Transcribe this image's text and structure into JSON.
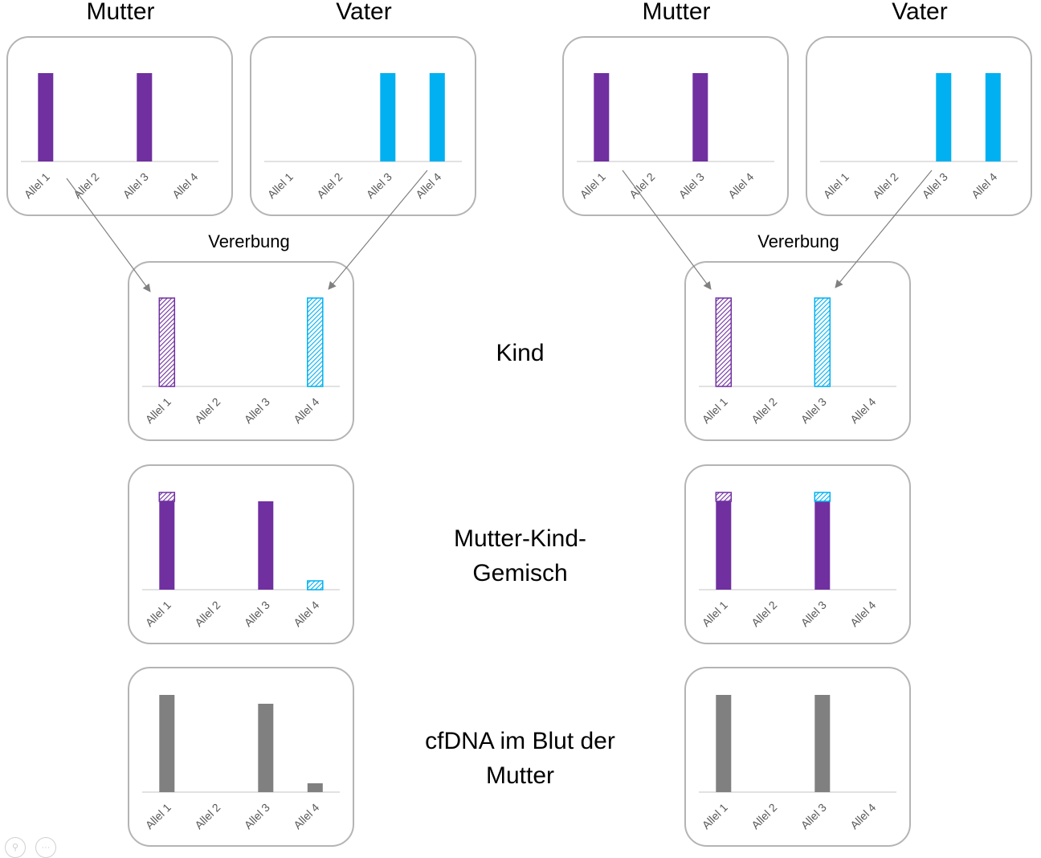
{
  "headings": {
    "left_mother": "Mutter",
    "left_father": "Vater",
    "right_mother": "Mutter",
    "right_father": "Vater"
  },
  "inheritance_label": "Vererbung",
  "row_labels": {
    "child": "Kind",
    "mix": "Mutter-Kind-Gemisch",
    "cfdna": "cfDNA im Blut der Mutter"
  },
  "colors": {
    "mother": "#7030a0",
    "father": "#00b0f0",
    "cfdna": "#808080",
    "axis": "#d9d9d9",
    "panel_border": "#b4b4b4",
    "arrow": "#808080"
  },
  "chart_data": [
    {
      "id": "L-mother",
      "type": "bar",
      "categories": [
        "Allel 1",
        "Allel 2",
        "Allel 3",
        "Allel 4"
      ],
      "series": [
        {
          "values": [
            1,
            0,
            1,
            0
          ],
          "color": "mother",
          "style": "solid"
        }
      ],
      "ylim": [
        0,
        1
      ]
    },
    {
      "id": "L-father",
      "type": "bar",
      "categories": [
        "Allel 1",
        "Allel 2",
        "Allel 3",
        "Allel 4"
      ],
      "series": [
        {
          "values": [
            0,
            0,
            1,
            1
          ],
          "color": "father",
          "style": "solid"
        }
      ],
      "ylim": [
        0,
        1
      ]
    },
    {
      "id": "R-mother",
      "type": "bar",
      "categories": [
        "Allel 1",
        "Allel 2",
        "Allel 3",
        "Allel 4"
      ],
      "series": [
        {
          "values": [
            1,
            0,
            1,
            0
          ],
          "color": "mother",
          "style": "solid"
        }
      ],
      "ylim": [
        0,
        1
      ]
    },
    {
      "id": "R-father",
      "type": "bar",
      "categories": [
        "Allel 1",
        "Allel 2",
        "Allel 3",
        "Allel 4"
      ],
      "series": [
        {
          "values": [
            0,
            0,
            1,
            1
          ],
          "color": "father",
          "style": "solid"
        }
      ],
      "ylim": [
        0,
        1
      ]
    },
    {
      "id": "L-child",
      "type": "bar",
      "categories": [
        "Allel 1",
        "Allel 2",
        "Allel 3",
        "Allel 4"
      ],
      "series": [
        {
          "values": [
            1,
            0,
            0,
            0
          ],
          "color": "mother",
          "style": "hatched"
        },
        {
          "values": [
            0,
            0,
            0,
            1
          ],
          "color": "father",
          "style": "hatched"
        }
      ],
      "ylim": [
        0,
        1
      ]
    },
    {
      "id": "R-child",
      "type": "bar",
      "categories": [
        "Allel 1",
        "Allel 2",
        "Allel 3",
        "Allel 4"
      ],
      "series": [
        {
          "values": [
            1,
            0,
            0,
            0
          ],
          "color": "mother",
          "style": "hatched"
        },
        {
          "values": [
            0,
            0,
            1,
            0
          ],
          "color": "father",
          "style": "hatched"
        }
      ],
      "ylim": [
        0,
        1
      ]
    },
    {
      "id": "L-mix",
      "type": "bar",
      "stacked": true,
      "categories": [
        "Allel 1",
        "Allel 2",
        "Allel 3",
        "Allel 4"
      ],
      "series": [
        {
          "values": [
            1,
            0,
            1,
            0
          ],
          "color": "mother",
          "style": "solid"
        },
        {
          "values": [
            0.1,
            0,
            0,
            0
          ],
          "color": "mother",
          "style": "hatched"
        },
        {
          "values": [
            0,
            0,
            0,
            0.1
          ],
          "color": "father",
          "style": "hatched"
        }
      ],
      "ylim": [
        0,
        1.1
      ]
    },
    {
      "id": "R-mix",
      "type": "bar",
      "stacked": true,
      "categories": [
        "Allel 1",
        "Allel 2",
        "Allel 3",
        "Allel 4"
      ],
      "series": [
        {
          "values": [
            1,
            0,
            1,
            0
          ],
          "color": "mother",
          "style": "solid"
        },
        {
          "values": [
            0.1,
            0,
            0,
            0
          ],
          "color": "mother",
          "style": "hatched"
        },
        {
          "values": [
            0,
            0,
            0.1,
            0
          ],
          "color": "father",
          "style": "hatched"
        }
      ],
      "ylim": [
        0,
        1.1
      ]
    },
    {
      "id": "L-cfdna",
      "type": "bar",
      "categories": [
        "Allel 1",
        "Allel 2",
        "Allel 3",
        "Allel 4"
      ],
      "series": [
        {
          "values": [
            1.1,
            0,
            1,
            0.1
          ],
          "color": "cfdna",
          "style": "solid"
        }
      ],
      "ylim": [
        0,
        1.1
      ]
    },
    {
      "id": "R-cfdna",
      "type": "bar",
      "categories": [
        "Allel 1",
        "Allel 2",
        "Allel 3",
        "Allel 4"
      ],
      "series": [
        {
          "values": [
            1.1,
            0,
            1.1,
            0
          ],
          "color": "cfdna",
          "style": "solid"
        }
      ],
      "ylim": [
        0,
        1.1
      ]
    }
  ]
}
